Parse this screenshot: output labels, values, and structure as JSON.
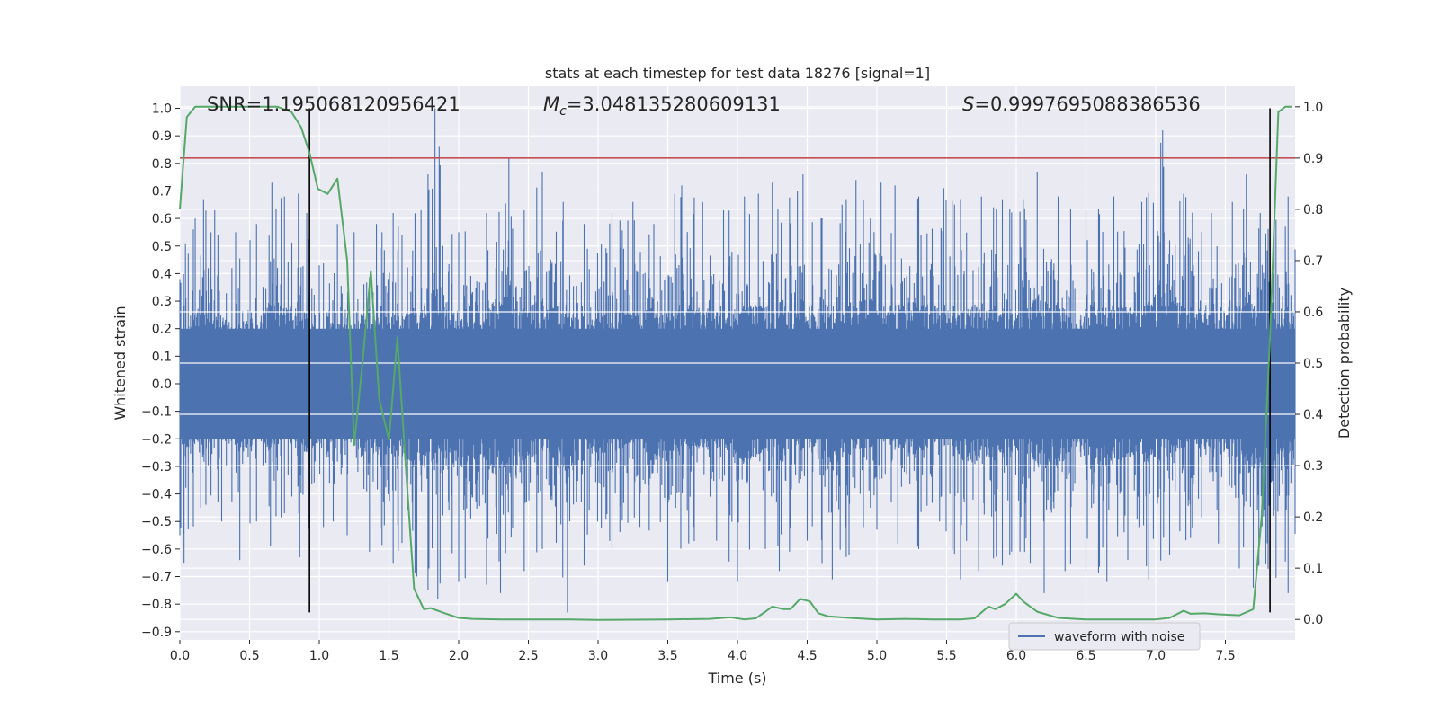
{
  "chart_data": {
    "type": "line",
    "title": "stats at each timestep for test data 18276 [signal=1]",
    "xlabel": "Time (s)",
    "ylabel_left": "Whitened strain",
    "ylabel_right": "Detection probability",
    "xlim": [
      0,
      8.0
    ],
    "ylim_left": [
      -0.93,
      1.08
    ],
    "ylim_right": [
      -0.04,
      1.04
    ],
    "x_ticks": [
      0.0,
      0.5,
      1.0,
      1.5,
      2.0,
      2.5,
      3.0,
      3.5,
      4.0,
      4.5,
      5.0,
      5.5,
      6.0,
      6.5,
      7.0,
      7.5
    ],
    "x_tick_labels": [
      "0.0",
      "0.5",
      "1.0",
      "1.5",
      "2.0",
      "2.5",
      "3.0",
      "3.5",
      "4.0",
      "4.5",
      "5.0",
      "5.5",
      "6.0",
      "6.5",
      "7.0",
      "7.5"
    ],
    "y_left_ticks": [
      -0.9,
      -0.8,
      -0.7,
      -0.6,
      -0.5,
      -0.4,
      -0.3,
      -0.2,
      -0.1,
      0.0,
      0.1,
      0.2,
      0.3,
      0.4,
      0.5,
      0.6,
      0.7,
      0.8,
      0.9,
      1.0
    ],
    "y_left_tick_labels": [
      "−0.9",
      "−0.8",
      "−0.7",
      "−0.6",
      "−0.5",
      "−0.4",
      "−0.3",
      "−0.2",
      "−0.1",
      "0.0",
      "0.1",
      "0.2",
      "0.3",
      "0.4",
      "0.5",
      "0.6",
      "0.7",
      "0.8",
      "0.9",
      "1.0"
    ],
    "y_right_ticks": [
      0.0,
      0.1,
      0.2,
      0.3,
      0.4,
      0.5,
      0.6,
      0.7,
      0.8,
      0.9,
      1.0
    ],
    "y_right_tick_labels": [
      "0.0",
      "0.1",
      "0.2",
      "0.3",
      "0.4",
      "0.5",
      "0.6",
      "0.7",
      "0.8",
      "0.9",
      "1.0"
    ],
    "annotations": {
      "snr_text": "SNR=1.195068120956421",
      "mc_symbol": "M",
      "mc_subscript": "c",
      "mc_value": "=3.048135280609131",
      "s_symbol": "S",
      "s_value": "=0.9997695088386536"
    },
    "threshold": {
      "axis": "right",
      "value": 0.9,
      "color": "#c44e52"
    },
    "vertical_lines": {
      "x": [
        0.93,
        7.82
      ],
      "ymin": -0.83,
      "ymax": 1.0,
      "color": "#000000"
    },
    "legend": {
      "entries": [
        "waveform with noise"
      ],
      "placement": "lower-right"
    },
    "grid": true,
    "series": [
      {
        "name": "waveform with noise",
        "axis": "left",
        "color": "#4c72b0",
        "kind": "dense-noise-waveform",
        "peaks_positive": [
          [
            0.0,
            0.38
          ],
          [
            0.04,
            0.51
          ],
          [
            0.11,
            0.6
          ],
          [
            0.17,
            0.67
          ],
          [
            0.25,
            0.63
          ],
          [
            0.4,
            0.55
          ],
          [
            0.55,
            0.58
          ],
          [
            0.66,
            0.73
          ],
          [
            0.75,
            0.68
          ],
          [
            0.85,
            0.69
          ],
          [
            0.91,
            0.62
          ],
          [
            1.0,
            0.43
          ],
          [
            1.13,
            0.58
          ],
          [
            1.25,
            0.55
          ],
          [
            1.41,
            0.58
          ],
          [
            1.53,
            0.62
          ],
          [
            1.73,
            0.63
          ],
          [
            1.78,
            0.76
          ],
          [
            1.83,
            1.0
          ],
          [
            1.86,
            0.86
          ],
          [
            2.0,
            0.55
          ],
          [
            2.2,
            0.62
          ],
          [
            2.36,
            0.82
          ],
          [
            2.47,
            0.63
          ],
          [
            2.6,
            0.77
          ],
          [
            2.75,
            0.66
          ],
          [
            2.9,
            0.58
          ],
          [
            3.1,
            0.62
          ],
          [
            3.25,
            0.66
          ],
          [
            3.4,
            0.58
          ],
          [
            3.55,
            0.69
          ],
          [
            3.6,
            0.72
          ],
          [
            3.75,
            0.66
          ],
          [
            3.9,
            0.63
          ],
          [
            4.05,
            0.68
          ],
          [
            4.15,
            0.69
          ],
          [
            4.25,
            0.73
          ],
          [
            4.43,
            0.7
          ],
          [
            4.47,
            0.76
          ],
          [
            4.6,
            0.6
          ],
          [
            4.75,
            0.65
          ],
          [
            4.85,
            0.74
          ],
          [
            5.03,
            0.73
          ],
          [
            5.13,
            0.72
          ],
          [
            5.3,
            0.68
          ],
          [
            5.48,
            0.71
          ],
          [
            5.6,
            0.67
          ],
          [
            5.75,
            0.68
          ],
          [
            5.9,
            0.67
          ],
          [
            6.05,
            0.67
          ],
          [
            6.15,
            0.77
          ],
          [
            6.3,
            0.68
          ],
          [
            6.5,
            0.63
          ],
          [
            6.7,
            0.68
          ],
          [
            6.9,
            0.66
          ],
          [
            7.05,
            0.92
          ],
          [
            7.2,
            0.69
          ],
          [
            7.4,
            0.62
          ],
          [
            7.55,
            0.66
          ],
          [
            7.65,
            0.76
          ],
          [
            7.75,
            0.62
          ],
          [
            7.85,
            0.63
          ],
          [
            7.95,
            0.68
          ]
        ],
        "peaks_negative": [
          [
            0.0,
            -0.55
          ],
          [
            0.03,
            -0.65
          ],
          [
            0.15,
            -0.45
          ],
          [
            0.3,
            -0.5
          ],
          [
            0.43,
            -0.64
          ],
          [
            0.55,
            -0.5
          ],
          [
            0.65,
            -0.59
          ],
          [
            0.75,
            -0.47
          ],
          [
            0.86,
            -0.63
          ],
          [
            1.03,
            -0.52
          ],
          [
            1.1,
            -0.5
          ],
          [
            1.2,
            -0.55
          ],
          [
            1.36,
            -0.61
          ],
          [
            1.53,
            -0.65
          ],
          [
            1.7,
            -0.7
          ],
          [
            1.78,
            -0.75
          ],
          [
            1.85,
            -0.78
          ],
          [
            2.0,
            -0.72
          ],
          [
            2.2,
            -0.73
          ],
          [
            2.3,
            -0.76
          ],
          [
            2.47,
            -0.68
          ],
          [
            2.6,
            -0.6
          ],
          [
            2.78,
            -0.83
          ],
          [
            2.9,
            -0.66
          ],
          [
            3.1,
            -0.6
          ],
          [
            3.3,
            -0.52
          ],
          [
            3.5,
            -0.72
          ],
          [
            3.65,
            -0.58
          ],
          [
            3.85,
            -0.57
          ],
          [
            4.0,
            -0.72
          ],
          [
            4.2,
            -0.6
          ],
          [
            4.3,
            -0.68
          ],
          [
            4.5,
            -0.57
          ],
          [
            4.68,
            -0.71
          ],
          [
            4.8,
            -0.62
          ],
          [
            5.0,
            -0.53
          ],
          [
            5.15,
            -0.58
          ],
          [
            5.3,
            -0.6
          ],
          [
            5.45,
            -0.5
          ],
          [
            5.6,
            -0.71
          ],
          [
            5.73,
            -0.68
          ],
          [
            5.9,
            -0.66
          ],
          [
            6.1,
            -0.65
          ],
          [
            6.2,
            -0.76
          ],
          [
            6.35,
            -0.68
          ],
          [
            6.5,
            -0.68
          ],
          [
            6.65,
            -0.72
          ],
          [
            6.8,
            -0.64
          ],
          [
            6.95,
            -0.71
          ],
          [
            7.1,
            -0.62
          ],
          [
            7.25,
            -0.56
          ],
          [
            7.45,
            -0.58
          ],
          [
            7.6,
            -0.67
          ],
          [
            7.7,
            -0.74
          ],
          [
            7.95,
            -0.76
          ]
        ]
      },
      {
        "name": "",
        "axis": "right",
        "color": "#55a868",
        "x": [
          0.0,
          0.05,
          0.11,
          0.2,
          0.3,
          0.4,
          0.5,
          0.6,
          0.7,
          0.8,
          0.87,
          0.93,
          0.99,
          1.06,
          1.13,
          1.2,
          1.25,
          1.31,
          1.37,
          1.43,
          1.5,
          1.56,
          1.62,
          1.68,
          1.75,
          1.8,
          1.9,
          2.0,
          2.1,
          2.3,
          2.5,
          2.8,
          3.0,
          3.5,
          3.8,
          3.95,
          4.05,
          4.13,
          4.2,
          4.25,
          4.33,
          4.38,
          4.45,
          4.52,
          4.58,
          4.65,
          4.8,
          5.0,
          5.2,
          5.4,
          5.6,
          5.7,
          5.8,
          5.85,
          5.92,
          6.0,
          6.05,
          6.15,
          6.3,
          6.5,
          6.8,
          7.0,
          7.1,
          7.2,
          7.25,
          7.35,
          7.45,
          7.6,
          7.7,
          7.76,
          7.82,
          7.88,
          7.93,
          7.98
        ],
        "y": [
          0.8,
          0.98,
          1.0,
          1.0,
          1.0,
          1.0,
          1.0,
          1.0,
          1.0,
          0.99,
          0.96,
          0.91,
          0.84,
          0.83,
          0.86,
          0.7,
          0.34,
          0.5,
          0.68,
          0.43,
          0.35,
          0.55,
          0.3,
          0.06,
          0.02,
          0.022,
          0.012,
          0.003,
          0.001,
          0.0,
          0.0,
          0.0,
          -0.001,
          0.0,
          0.001,
          0.004,
          0.0,
          0.002,
          0.015,
          0.025,
          0.02,
          0.02,
          0.04,
          0.035,
          0.012,
          0.006,
          0.003,
          0.0,
          0.001,
          0.0,
          0.0,
          0.002,
          0.025,
          0.02,
          0.03,
          0.05,
          0.035,
          0.015,
          0.003,
          0.0,
          0.0,
          0.0,
          0.003,
          0.017,
          0.011,
          0.012,
          0.01,
          0.008,
          0.02,
          0.2,
          0.55,
          0.99,
          1.0,
          1.0
        ]
      }
    ]
  }
}
